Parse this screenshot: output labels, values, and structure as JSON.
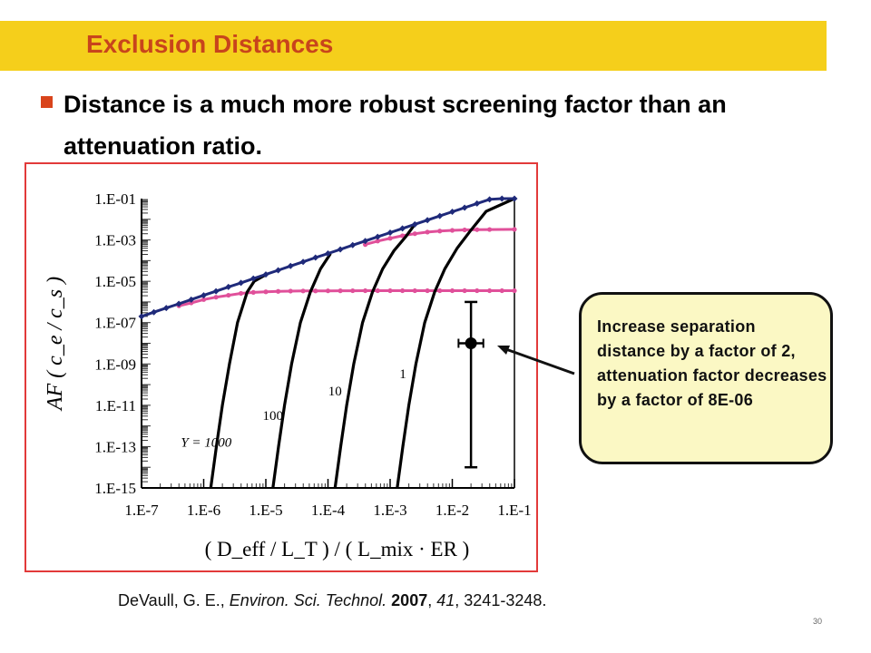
{
  "slide": {
    "title": "Exclusion Distances",
    "bullet": "Distance is a much more robust screening factor than an attenuation ratio.",
    "callout": "Increase separation distance by a factor of 2, attenuation factor decreases by a factor of 8E-06",
    "citation": {
      "authors": "DeVaull, G. E., ",
      "journal": "Environ. Sci. Technol.",
      "year": "2007",
      "volume": "41",
      "pages": "3241-3248."
    },
    "page_number": "30"
  },
  "colors": {
    "title_bar": "#f5cf1b",
    "title_text": "#c8441c",
    "bullet": "#d9441c",
    "frame": "#e23a3a",
    "callout_bg": "#fbf8c4",
    "navy_series": "#1f2a7a",
    "pink_series": "#e0509a",
    "black_series": "#000000"
  },
  "chart_data": {
    "type": "line",
    "x_scale": "log",
    "y_scale": "log",
    "xlabel": "( D_eff / L_T ) / ( L_mix · ER )",
    "ylabel": "AF ( c_e / c_s )",
    "xlim": [
      1e-07,
      0.1
    ],
    "ylim": [
      1e-15,
      0.1
    ],
    "x_ticks": [
      1e-07,
      1e-06,
      1e-05,
      0.0001,
      0.001,
      0.01,
      0.1
    ],
    "x_tick_labels": [
      "1.E-7",
      "1.E-6",
      "1.E-5",
      "1.E-4",
      "1.E-3",
      "1.E-2",
      "1.E-1"
    ],
    "y_ticks": [
      0.1,
      0.001,
      1e-05,
      1e-07,
      1e-09,
      1e-11,
      1e-13,
      1e-15
    ],
    "y_tick_labels": [
      "1.E-01",
      "1.E-03",
      "1.E-05",
      "1.E-07",
      "1.E-09",
      "1.E-11",
      "1.E-13",
      "1.E-15"
    ],
    "curve_labels": [
      "Y = 1000",
      "100",
      "10",
      "1"
    ],
    "series": [
      {
        "style": "navy-markers",
        "points": [
          [
            1e-07,
            2e-07
          ],
          [
            1.58e-07,
            3.2e-07
          ],
          [
            2.5e-07,
            5.1e-07
          ],
          [
            3.98e-07,
            8.1e-07
          ],
          [
            6.3e-07,
            1.3e-06
          ],
          [
            1e-06,
            2.1e-06
          ],
          [
            1.58e-06,
            3.3e-06
          ],
          [
            2.5e-06,
            5.3e-06
          ],
          [
            3.98e-06,
            8.4e-06
          ],
          [
            6.3e-06,
            1.35e-05
          ],
          [
            1e-05,
            2.15e-05
          ],
          [
            1.58e-05,
            3.4e-05
          ],
          [
            2.5e-05,
            5.5e-05
          ],
          [
            3.98e-05,
            8.7e-05
          ],
          [
            6.3e-05,
            0.00014
          ],
          [
            0.0001,
            0.00022
          ],
          [
            0.000158,
            0.00035
          ],
          [
            0.00025,
            0.00056
          ],
          [
            0.000398,
            0.00089
          ],
          [
            0.00063,
            0.00142
          ],
          [
            0.001,
            0.00225
          ],
          [
            0.00158,
            0.0036
          ],
          [
            0.0025,
            0.0057
          ],
          [
            0.00398,
            0.0091
          ],
          [
            0.0063,
            0.0145
          ],
          [
            0.01,
            0.023
          ],
          [
            0.0158,
            0.0365
          ],
          [
            0.025,
            0.058
          ],
          [
            0.0398,
            0.092
          ],
          [
            0.063,
            0.1
          ],
          [
            0.1,
            0.1
          ]
        ]
      },
      {
        "style": "pink-upper",
        "points": [
          [
            0.000398,
            0.0006
          ],
          [
            0.00063,
            0.00088
          ],
          [
            0.001,
            0.0012
          ],
          [
            0.00158,
            0.0016
          ],
          [
            0.0025,
            0.002
          ],
          [
            0.00398,
            0.0024
          ],
          [
            0.0063,
            0.0027
          ],
          [
            0.01,
            0.0029
          ],
          [
            0.0158,
            0.00305
          ],
          [
            0.025,
            0.00315
          ],
          [
            0.0398,
            0.0032
          ],
          [
            0.1,
            0.00325
          ]
        ]
      },
      {
        "style": "pink-lower",
        "points": [
          [
            4e-07,
            6.5e-07
          ],
          [
            6.3e-07,
            9e-07
          ],
          [
            1e-06,
            1.3e-06
          ],
          [
            1.58e-06,
            1.7e-06
          ],
          [
            2.5e-06,
            2.1e-06
          ],
          [
            3.98e-06,
            2.6e-06
          ],
          [
            6.3e-06,
            2.9e-06
          ],
          [
            1e-05,
            3.1e-06
          ],
          [
            1.58e-05,
            3.25e-06
          ],
          [
            2.5e-05,
            3.35e-06
          ],
          [
            3.98e-05,
            3.4e-06
          ],
          [
            6.3e-05,
            3.42e-06
          ],
          [
            0.0001,
            3.45e-06
          ],
          [
            0.000158,
            3.47e-06
          ],
          [
            0.00025,
            3.49e-06
          ],
          [
            0.000398,
            3.5e-06
          ],
          [
            0.00063,
            3.5e-06
          ],
          [
            0.001,
            3.5e-06
          ],
          [
            0.00158,
            3.5e-06
          ],
          [
            0.0025,
            3.5e-06
          ],
          [
            0.00398,
            3.5e-06
          ],
          [
            0.0063,
            3.5e-06
          ],
          [
            0.01,
            3.5e-06
          ],
          [
            0.0158,
            3.5e-06
          ],
          [
            0.025,
            3.5e-06
          ],
          [
            0.0398,
            3.5e-06
          ],
          [
            0.063,
            3.5e-06
          ],
          [
            0.1,
            3.5e-06
          ]
        ]
      },
      {
        "name": "Y = 1000",
        "style": "black-curve",
        "points": [
          [
            1.3e-06,
            1e-15
          ],
          [
            1.6e-06,
            1e-13
          ],
          [
            2e-06,
            1e-11
          ],
          [
            2.6e-06,
            1e-09
          ],
          [
            3.5e-06,
            1e-07
          ],
          [
            5e-06,
            3e-06
          ],
          [
            6.5e-06,
            1e-05
          ],
          [
            1e-05,
            2.1e-05
          ]
        ]
      },
      {
        "name": "100",
        "style": "black-curve",
        "points": [
          [
            1.3e-05,
            1e-15
          ],
          [
            1.6e-05,
            1e-13
          ],
          [
            2e-05,
            1e-11
          ],
          [
            2.6e-05,
            1e-09
          ],
          [
            3.6e-05,
            1e-07
          ],
          [
            5.2e-05,
            3e-06
          ],
          [
            7.6e-05,
            4e-05
          ],
          [
            0.00011,
            0.00022
          ]
        ]
      },
      {
        "name": "10",
        "style": "black-curve",
        "points": [
          [
            0.00013,
            1e-15
          ],
          [
            0.00016,
            1e-13
          ],
          [
            0.0002,
            1e-11
          ],
          [
            0.00026,
            1e-09
          ],
          [
            0.00036,
            1e-07
          ],
          [
            0.00052,
            3e-06
          ],
          [
            0.00076,
            4e-05
          ],
          [
            0.00115,
            0.0003
          ],
          [
            0.0018,
            0.0015
          ],
          [
            0.0025,
            0.0057
          ]
        ]
      },
      {
        "name": "1",
        "style": "black-curve",
        "points": [
          [
            0.0013,
            1e-15
          ],
          [
            0.0016,
            1e-13
          ],
          [
            0.002,
            1e-11
          ],
          [
            0.0026,
            1e-09
          ],
          [
            0.0036,
            1e-07
          ],
          [
            0.0052,
            3e-06
          ],
          [
            0.0076,
            4e-05
          ],
          [
            0.012,
            0.0004
          ],
          [
            0.02,
            0.003
          ],
          [
            0.035,
            0.024
          ],
          [
            0.1,
            0.1
          ]
        ]
      }
    ],
    "error_bar": {
      "x": 0.02,
      "y": 1e-08,
      "y_low": 1e-14,
      "y_high": 1e-06,
      "x_low": 0.0126,
      "x_high": 0.0316
    }
  }
}
